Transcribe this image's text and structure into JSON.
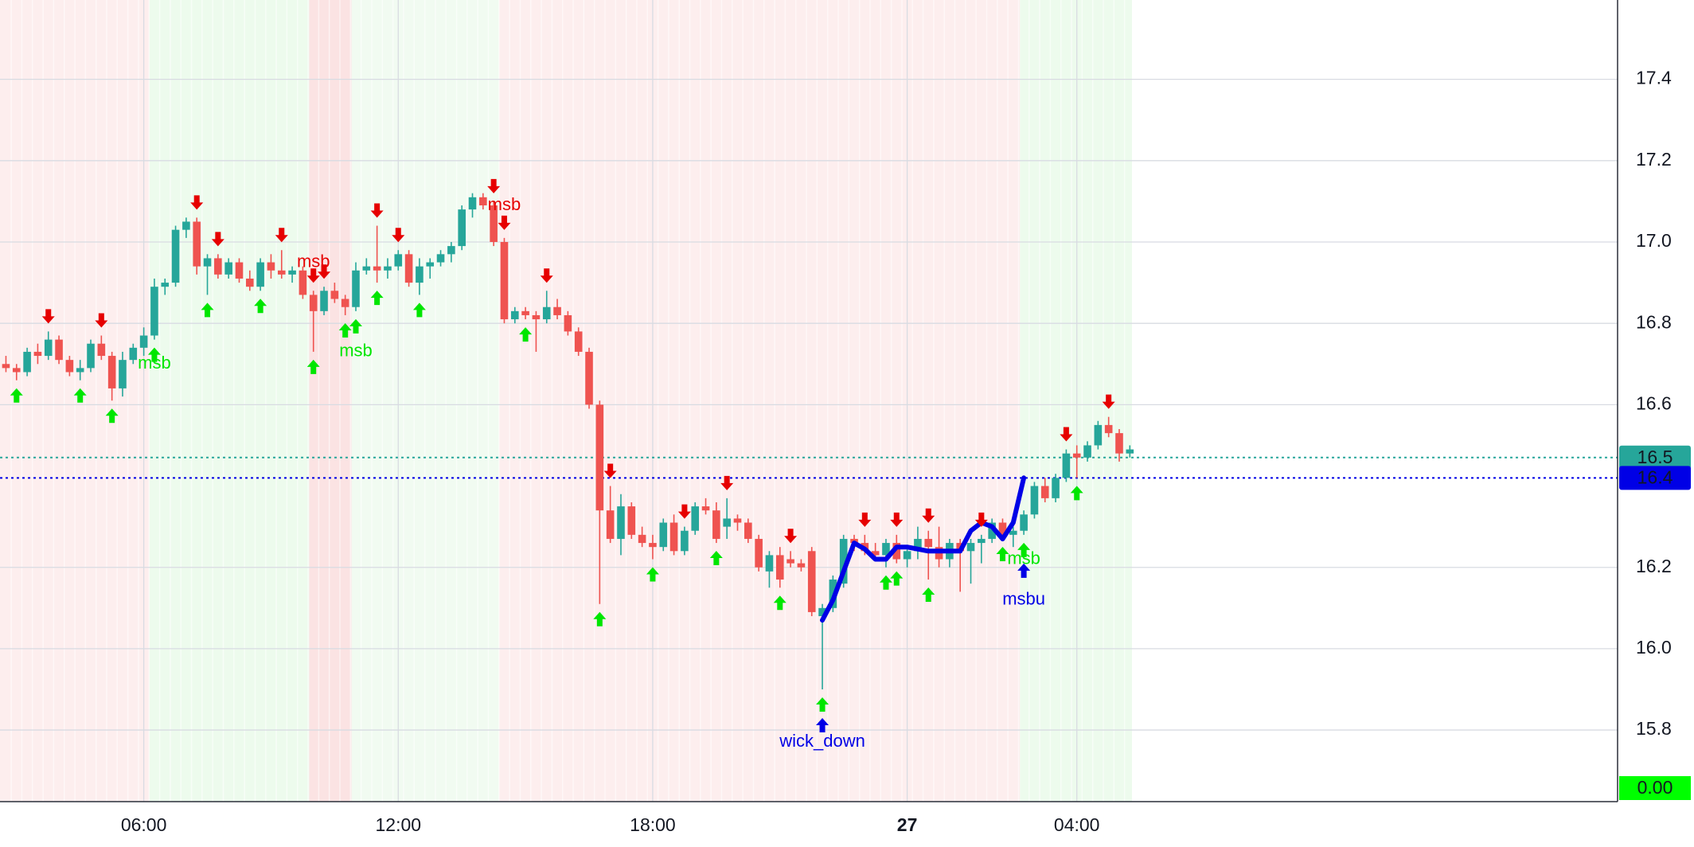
{
  "chart_data": {
    "type": "candlestick",
    "up_color": "#26a69a",
    "down_color": "#ef5350",
    "x": [
      2.75,
      3,
      3.25,
      3.5,
      3.75,
      4,
      4.25,
      4.5,
      4.75,
      5,
      5.25,
      5.5,
      5.75,
      6,
      6.25,
      6.5,
      6.75,
      7,
      7.25,
      7.5,
      7.75,
      8,
      8.25,
      8.5,
      8.75,
      9,
      9.25,
      9.5,
      9.75,
      10,
      10.25,
      10.5,
      10.75,
      11,
      11.25,
      11.5,
      11.75,
      12,
      12.25,
      12.5,
      12.75,
      13,
      13.25,
      13.5,
      13.75,
      14,
      14.25,
      14.5,
      14.75,
      15,
      15.25,
      15.5,
      15.75,
      16,
      16.25,
      16.5,
      16.75,
      17,
      17.25,
      17.5,
      17.75,
      18,
      18.25,
      18.5,
      18.75,
      19,
      19.25,
      19.5,
      19.75,
      20,
      20.25,
      20.5,
      20.75,
      21,
      21.25,
      21.5,
      21.75,
      22,
      22.25,
      22.5,
      22.75,
      23,
      23.25,
      23.5,
      23.75,
      24,
      24.25,
      24.5,
      24.75,
      25,
      25.25,
      25.5,
      25.75,
      26,
      26.25,
      26.5,
      26.75,
      27,
      27.25,
      27.5,
      27.75,
      28,
      28.25,
      28.5,
      28.75,
      29,
      29.25
    ],
    "candles": [
      [
        16.7,
        16.72,
        16.68,
        16.69
      ],
      [
        16.69,
        16.7,
        16.66,
        16.68
      ],
      [
        16.68,
        16.74,
        16.67,
        16.73
      ],
      [
        16.73,
        16.75,
        16.7,
        16.72
      ],
      [
        16.72,
        16.78,
        16.71,
        16.76
      ],
      [
        16.76,
        16.77,
        16.7,
        16.71
      ],
      [
        16.71,
        16.72,
        16.67,
        16.68
      ],
      [
        16.68,
        16.71,
        16.66,
        16.69
      ],
      [
        16.69,
        16.76,
        16.68,
        16.75
      ],
      [
        16.75,
        16.77,
        16.71,
        16.72
      ],
      [
        16.72,
        16.73,
        16.61,
        16.64
      ],
      [
        16.64,
        16.73,
        16.62,
        16.71
      ],
      [
        16.71,
        16.75,
        16.7,
        16.74
      ],
      [
        16.74,
        16.79,
        16.72,
        16.77
      ],
      [
        16.77,
        16.91,
        16.76,
        16.89
      ],
      [
        16.89,
        16.91,
        16.87,
        16.9
      ],
      [
        16.9,
        17.04,
        16.89,
        17.03
      ],
      [
        17.03,
        17.06,
        17.01,
        17.05
      ],
      [
        17.05,
        17.06,
        16.92,
        16.94
      ],
      [
        16.94,
        16.97,
        16.87,
        16.96
      ],
      [
        16.96,
        16.97,
        16.91,
        16.92
      ],
      [
        16.92,
        16.96,
        16.91,
        16.95
      ],
      [
        16.95,
        16.96,
        16.9,
        16.91
      ],
      [
        16.91,
        16.93,
        16.88,
        16.89
      ],
      [
        16.89,
        16.96,
        16.88,
        16.95
      ],
      [
        16.95,
        16.97,
        16.91,
        16.93
      ],
      [
        16.93,
        16.98,
        16.91,
        16.92
      ],
      [
        16.92,
        16.94,
        16.9,
        16.93
      ],
      [
        16.93,
        16.94,
        16.86,
        16.87
      ],
      [
        16.87,
        16.88,
        16.73,
        16.83
      ],
      [
        16.83,
        16.89,
        16.82,
        16.88
      ],
      [
        16.88,
        16.9,
        16.85,
        16.86
      ],
      [
        16.86,
        16.87,
        16.82,
        16.84
      ],
      [
        16.84,
        16.95,
        16.83,
        16.93
      ],
      [
        16.93,
        16.96,
        16.92,
        16.94
      ],
      [
        16.94,
        17.04,
        16.9,
        16.93
      ],
      [
        16.93,
        16.96,
        16.91,
        16.94
      ],
      [
        16.94,
        16.98,
        16.93,
        16.97
      ],
      [
        16.97,
        16.98,
        16.89,
        16.9
      ],
      [
        16.9,
        16.96,
        16.87,
        16.94
      ],
      [
        16.94,
        16.96,
        16.91,
        16.95
      ],
      [
        16.95,
        16.98,
        16.94,
        16.97
      ],
      [
        16.97,
        17.0,
        16.95,
        16.99
      ],
      [
        16.99,
        17.09,
        16.98,
        17.08
      ],
      [
        17.08,
        17.12,
        17.06,
        17.11
      ],
      [
        17.11,
        17.12,
        17.08,
        17.09
      ],
      [
        17.09,
        17.1,
        16.99,
        17.0
      ],
      [
        17.0,
        17.01,
        16.8,
        16.81
      ],
      [
        16.81,
        16.84,
        16.8,
        16.83
      ],
      [
        16.83,
        16.84,
        16.81,
        16.82
      ],
      [
        16.82,
        16.83,
        16.73,
        16.81
      ],
      [
        16.81,
        16.88,
        16.8,
        16.84
      ],
      [
        16.84,
        16.86,
        16.81,
        16.82
      ],
      [
        16.82,
        16.83,
        16.77,
        16.78
      ],
      [
        16.78,
        16.79,
        16.72,
        16.73
      ],
      [
        16.73,
        16.74,
        16.59,
        16.6
      ],
      [
        16.6,
        16.61,
        16.11,
        16.34
      ],
      [
        16.34,
        16.4,
        16.26,
        16.27
      ],
      [
        16.27,
        16.38,
        16.23,
        16.35
      ],
      [
        16.35,
        16.36,
        16.27,
        16.28
      ],
      [
        16.28,
        16.3,
        16.25,
        16.26
      ],
      [
        16.26,
        16.28,
        16.22,
        16.25
      ],
      [
        16.25,
        16.32,
        16.24,
        16.31
      ],
      [
        16.31,
        16.33,
        16.23,
        16.24
      ],
      [
        16.24,
        16.3,
        16.23,
        16.29
      ],
      [
        16.29,
        16.36,
        16.28,
        16.35
      ],
      [
        16.35,
        16.37,
        16.33,
        16.34
      ],
      [
        16.34,
        16.36,
        16.26,
        16.27
      ],
      [
        16.3,
        16.37,
        16.27,
        16.32
      ],
      [
        16.32,
        16.33,
        16.29,
        16.31
      ],
      [
        16.31,
        16.32,
        16.26,
        16.27
      ],
      [
        16.27,
        16.28,
        16.19,
        16.2
      ],
      [
        16.19,
        16.24,
        16.15,
        16.23
      ],
      [
        16.23,
        16.25,
        16.15,
        16.17
      ],
      [
        16.22,
        16.24,
        16.2,
        16.21
      ],
      [
        16.21,
        16.22,
        16.19,
        16.2
      ],
      [
        16.24,
        16.25,
        16.08,
        16.09
      ],
      [
        16.08,
        16.11,
        15.9,
        16.1
      ],
      [
        16.1,
        16.18,
        16.09,
        16.17
      ],
      [
        16.16,
        16.28,
        16.15,
        16.27
      ],
      [
        16.27,
        16.28,
        16.24,
        16.26
      ],
      [
        16.26,
        16.28,
        16.23,
        16.24
      ],
      [
        16.24,
        16.26,
        16.22,
        16.23
      ],
      [
        16.23,
        16.27,
        16.2,
        16.26
      ],
      [
        16.26,
        16.28,
        16.21,
        16.22
      ],
      [
        16.22,
        16.25,
        16.2,
        16.24
      ],
      [
        16.24,
        16.3,
        16.22,
        16.27
      ],
      [
        16.27,
        16.29,
        16.17,
        16.25
      ],
      [
        16.25,
        16.3,
        16.2,
        16.22
      ],
      [
        16.22,
        16.27,
        16.2,
        16.26
      ],
      [
        16.26,
        16.27,
        16.14,
        16.24
      ],
      [
        16.24,
        16.27,
        16.16,
        16.26
      ],
      [
        16.26,
        16.28,
        16.21,
        16.27
      ],
      [
        16.27,
        16.32,
        16.26,
        16.31
      ],
      [
        16.31,
        16.32,
        16.27,
        16.28
      ],
      [
        16.28,
        16.3,
        16.25,
        16.29
      ],
      [
        16.29,
        16.34,
        16.28,
        16.33
      ],
      [
        16.33,
        16.41,
        16.32,
        16.4
      ],
      [
        16.4,
        16.42,
        16.36,
        16.37
      ],
      [
        16.37,
        16.43,
        16.36,
        16.42
      ],
      [
        16.42,
        16.49,
        16.41,
        16.48
      ],
      [
        16.48,
        16.5,
        16.42,
        16.47
      ],
      [
        16.47,
        16.51,
        16.46,
        16.5
      ],
      [
        16.5,
        16.56,
        16.49,
        16.55
      ],
      [
        16.55,
        16.57,
        16.52,
        16.53
      ],
      [
        16.53,
        16.54,
        16.46,
        16.48
      ],
      [
        16.48,
        16.5,
        16.47,
        16.49
      ]
    ],
    "xlim": [
      2.61,
      40.75
    ],
    "xticks": [
      {
        "value": 6,
        "label": "06:00"
      },
      {
        "value": 12,
        "label": "12:00"
      },
      {
        "value": 18,
        "label": "18:00"
      },
      {
        "value": 24,
        "label": "27",
        "bold": true
      },
      {
        "value": 28,
        "label": "04:00"
      }
    ],
    "ylim": [
      15.624,
      17.595
    ],
    "yticks": [
      15.8,
      {
        "value": 16,
        "label": "16.0"
      },
      16.2,
      16.6,
      16.8,
      {
        "value": 17,
        "label": "17.0"
      },
      17.2,
      17.4
    ],
    "grid": true,
    "zones": [
      {
        "from": 2.61,
        "to": 6.13,
        "color": "#fdeeee"
      },
      {
        "from": 6.13,
        "to": 9.9,
        "color": "#edfbed"
      },
      {
        "from": 9.9,
        "to": 10.9,
        "color": "#fbe3e3"
      },
      {
        "from": 10.9,
        "to": 14.38,
        "color": "#f1fbf1"
      },
      {
        "from": 14.38,
        "to": 26.66,
        "color": "#fdeeee"
      },
      {
        "from": 26.66,
        "to": 29.3,
        "color": "#edfbed"
      }
    ],
    "signals": {
      "up_color": "#00e600",
      "down_color": "#e60000",
      "blue_color": "#0000e6",
      "up": [
        3,
        4.5,
        5.25,
        6.25,
        7.5,
        8.75,
        10,
        10.75,
        11,
        11.5,
        12.5,
        15,
        16.75,
        18,
        19.5,
        21,
        22,
        23.5,
        23.75,
        24.5,
        26.25,
        26.75,
        28
      ],
      "down": [
        3.75,
        5,
        7.25,
        7.75,
        9.25,
        10,
        10.25,
        11.5,
        12,
        14.25,
        14.5,
        15.5,
        17,
        18.75,
        19.75,
        21.25,
        23,
        23.75,
        24.5,
        25.75,
        27.75,
        28.75
      ],
      "blue_up": [
        22,
        26.75
      ]
    },
    "line": {
      "color": "#0000e6",
      "x": [
        22,
        22.25,
        22.75,
        23,
        23.25,
        23.5,
        23.75,
        24,
        24.5,
        25.25,
        25.5,
        25.75,
        26,
        26.25,
        26.5,
        26.75
      ],
      "y": [
        16.07,
        16.12,
        16.26,
        16.245,
        16.22,
        16.22,
        16.25,
        16.25,
        16.24,
        16.24,
        16.29,
        16.31,
        16.3,
        16.27,
        16.31,
        16.42
      ]
    },
    "annotations": [
      {
        "text": "msb",
        "x": 10,
        "y": 16.95,
        "color": "#e60000"
      },
      {
        "text": "msb",
        "x": 14.5,
        "y": 17.09,
        "color": "#e60000"
      },
      {
        "text": "msb",
        "x": 6.25,
        "y": 16.7,
        "color": "#00e600"
      },
      {
        "text": "msb",
        "x": 11,
        "y": 16.73,
        "color": "#00e600"
      },
      {
        "text": "msb",
        "x": 26.75,
        "y": 16.22,
        "color": "#00e600"
      },
      {
        "text": "msbu",
        "x": 26.75,
        "y": 16.12,
        "color": "#0000e6"
      },
      {
        "text": "wick_down",
        "x": 22,
        "y": 15.77,
        "color": "#0000e6"
      }
    ],
    "price_lines": [
      {
        "value": 16.47,
        "label": "16.5",
        "color": "#26a69a"
      },
      {
        "value": 16.42,
        "label": "16.4",
        "color": "#0000e6"
      }
    ],
    "indicator": {
      "value": 0,
      "label": "0.00",
      "color": "#00ff00"
    }
  }
}
